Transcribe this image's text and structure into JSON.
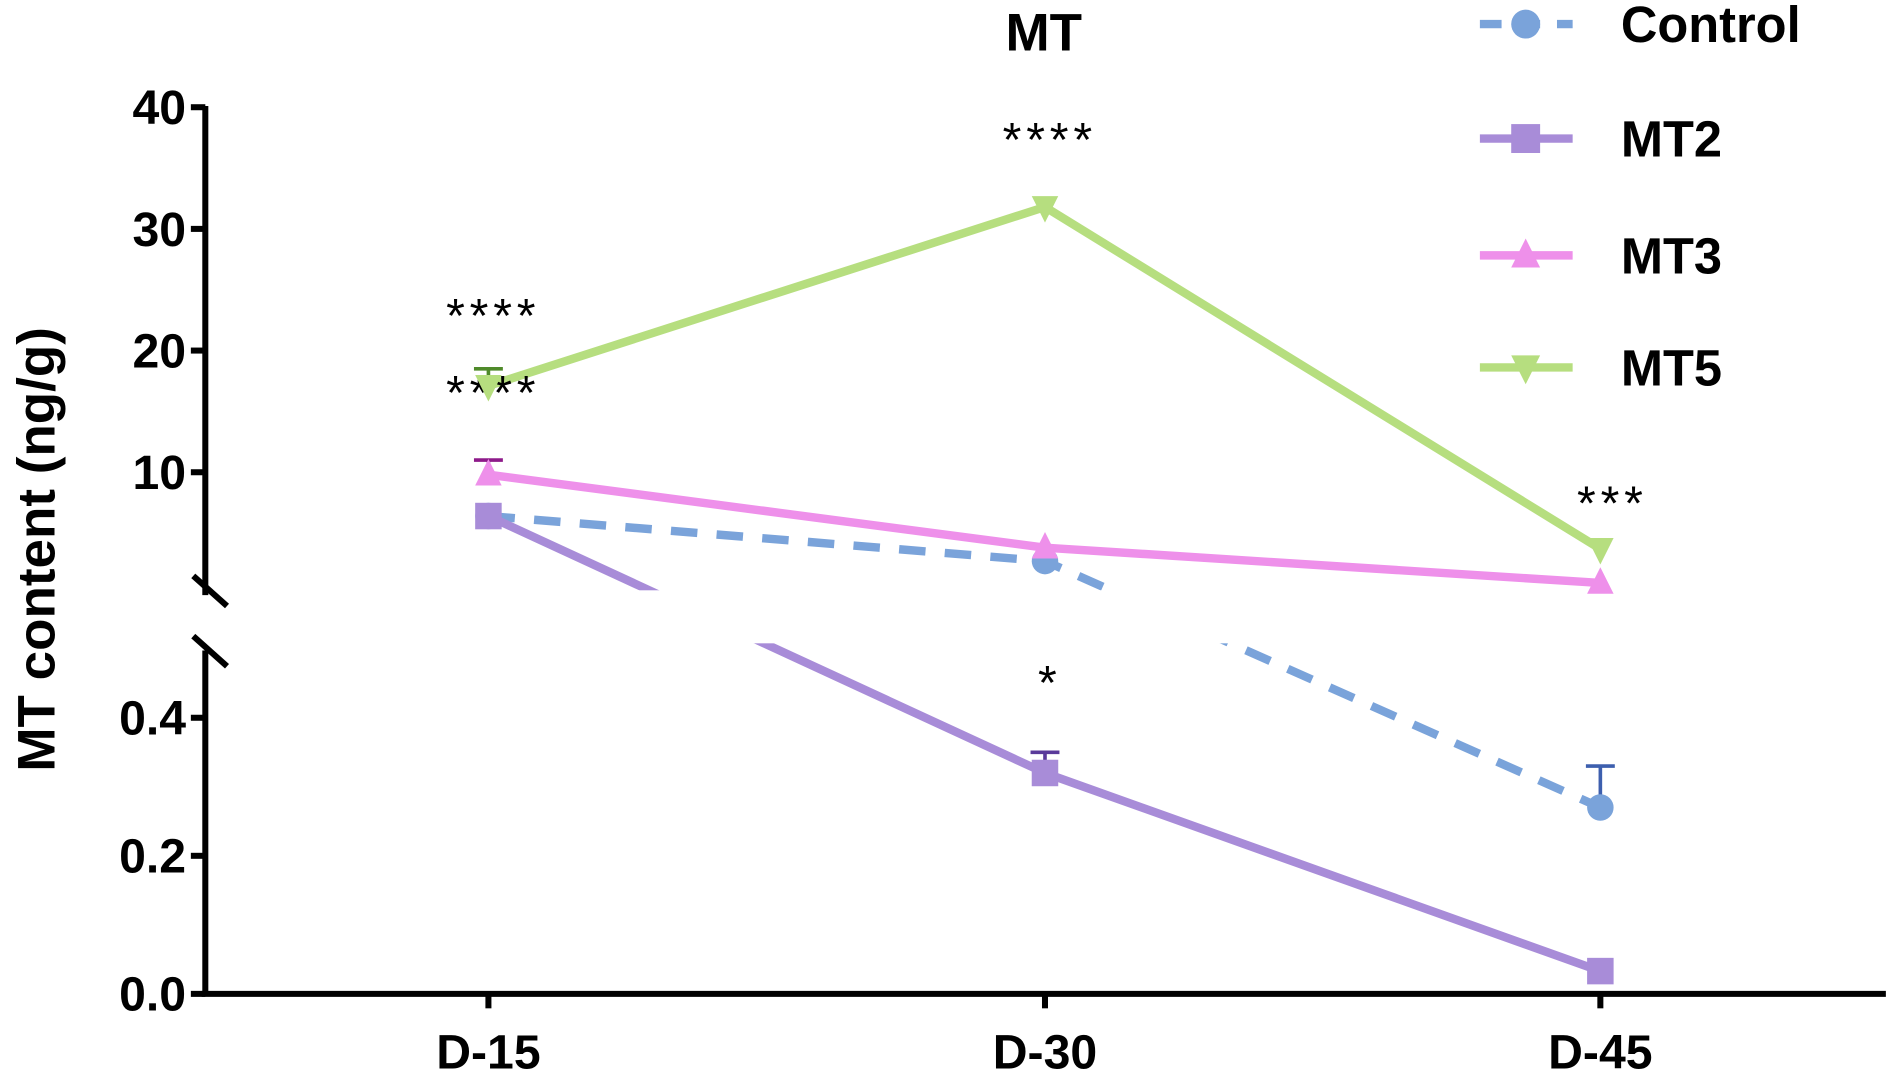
{
  "chart_data": {
    "type": "line",
    "title": "MT",
    "xlabel": "",
    "ylabel": "MT content (ng/g)",
    "categories": [
      "D-15",
      "D-30",
      "D-45"
    ],
    "y_axis_break": true,
    "ylim_lower": [
      0,
      0.5
    ],
    "ylim_upper": [
      0.5,
      40
    ],
    "yticks_lower": [
      "0.0",
      "0.2",
      "0.4"
    ],
    "yticks_upper": [
      "10",
      "20",
      "30",
      "40"
    ],
    "grid": false,
    "legend_position": "top-right",
    "series": [
      {
        "name": "Control",
        "color": "#7aa3da",
        "marker": "circle",
        "dashed": true,
        "values": [
          6.4,
          2.7,
          0.27
        ],
        "error_upper": [
          null,
          null,
          0.33
        ],
        "error_color": "#3d5fae",
        "significance": [
          "",
          "",
          ""
        ]
      },
      {
        "name": "MT2",
        "color": "#a88cd8",
        "marker": "square",
        "dashed": false,
        "values": [
          6.4,
          0.32,
          0.033
        ],
        "error_upper": [
          null,
          0.35,
          null
        ],
        "error_color": "#5a3a9a",
        "significance": [
          "",
          "*",
          ""
        ]
      },
      {
        "name": "MT3",
        "color": "#ee90ea",
        "marker": "triangle-up",
        "dashed": false,
        "values": [
          9.8,
          3.8,
          0.9
        ],
        "error_upper": [
          11.0,
          null,
          null
        ],
        "error_color": "#8e1a8a",
        "significance": [
          "****",
          "",
          ""
        ]
      },
      {
        "name": "MT5",
        "color": "#b6de7f",
        "marker": "triangle-down",
        "dashed": false,
        "values": [
          17.1,
          31.8,
          3.7
        ],
        "error_upper": [
          18.5,
          null,
          null
        ],
        "error_color": "#4f8a2a",
        "significance": [
          "****",
          "****",
          "***"
        ]
      }
    ]
  }
}
